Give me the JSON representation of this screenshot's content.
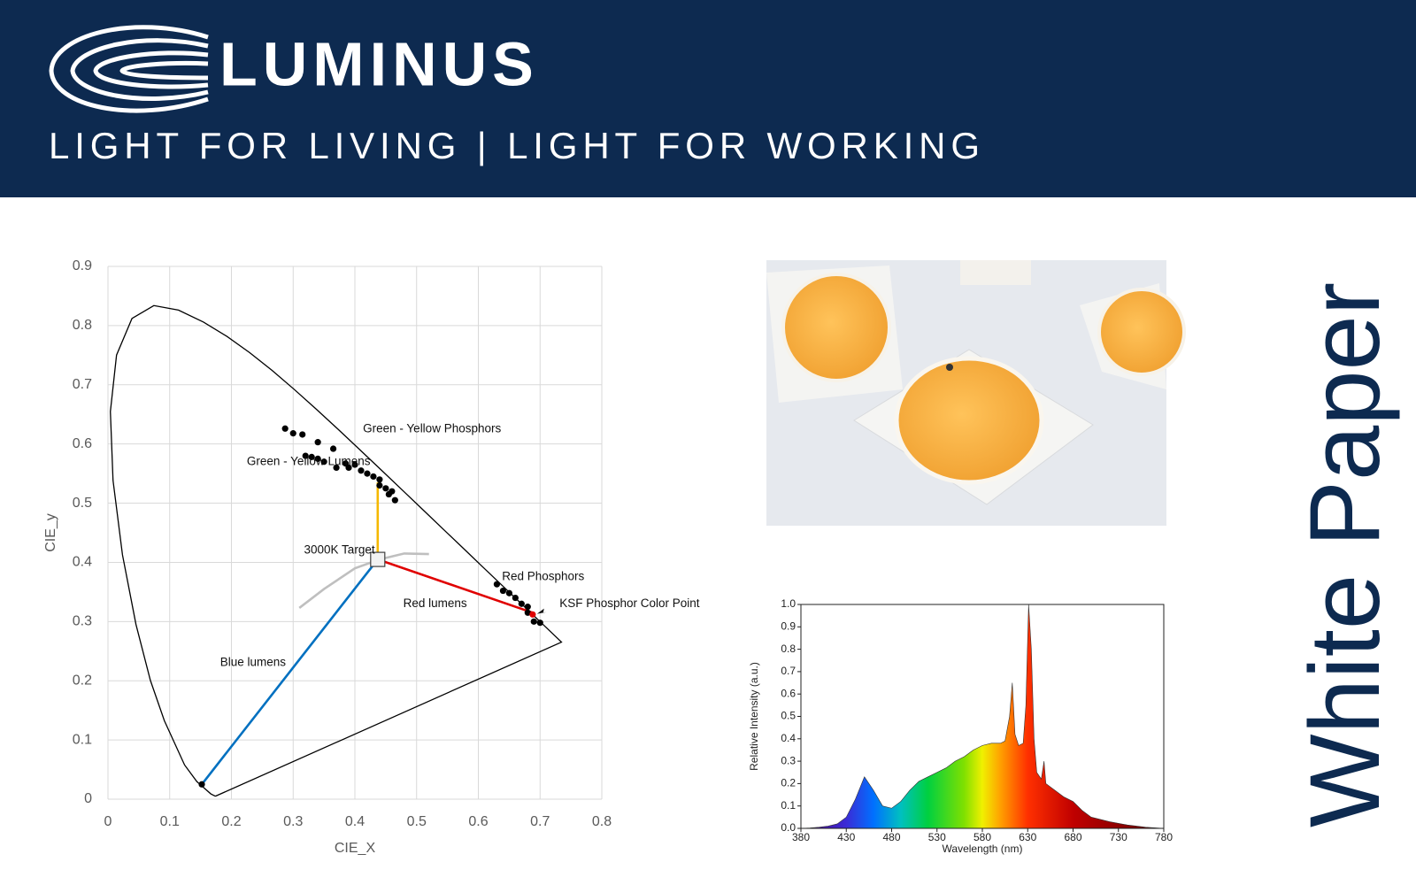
{
  "header": {
    "logo": "LUMINUS",
    "tagline": "LIGHT FOR LIVING | LIGHT FOR WORKING"
  },
  "side_title": "White Paper",
  "chart_data": [
    {
      "type": "scatter",
      "xlabel": "CIE_X",
      "ylabel": "CIE_y",
      "xlim": [
        0,
        0.8
      ],
      "ylim": [
        0,
        0.9
      ],
      "xticks": [
        0,
        0.1,
        0.2,
        0.3,
        0.4,
        0.5,
        0.6,
        0.7,
        0.8
      ],
      "yticks": [
        0,
        0.1,
        0.2,
        0.3,
        0.4,
        0.5,
        0.6,
        0.7,
        0.8,
        0.9
      ],
      "grid": true,
      "series": [
        {
          "mode": "line",
          "color": "#000000",
          "x": [
            0.1741,
            0.1666,
            0.144,
            0.1241,
            0.0913,
            0.0687,
            0.0454,
            0.0235,
            0.0082,
            0.0039,
            0.0139,
            0.0389,
            0.0743,
            0.1142,
            0.1547,
            0.1929,
            0.2296,
            0.2658,
            0.3016,
            0.3373,
            0.3731,
            0.4087,
            0.4441,
            0.4788,
            0.5125,
            0.5448,
            0.5752,
            0.6029,
            0.627,
            0.6482,
            0.6658,
            0.6801,
            0.6915,
            0.7006,
            0.7079,
            0.7347,
            0.1741
          ],
          "y": [
            0.005,
            0.0089,
            0.0297,
            0.0578,
            0.1327,
            0.2007,
            0.295,
            0.4127,
            0.5384,
            0.6548,
            0.7502,
            0.812,
            0.8338,
            0.8262,
            0.8059,
            0.7816,
            0.7543,
            0.7243,
            0.6923,
            0.6589,
            0.6245,
            0.5896,
            0.5547,
            0.5202,
            0.4866,
            0.4544,
            0.4242,
            0.3965,
            0.3725,
            0.3514,
            0.334,
            0.3197,
            0.3083,
            0.2993,
            0.292,
            0.2653,
            0.005
          ]
        },
        {
          "mode": "line",
          "color": "#bfbfbf",
          "x": [
            0.31,
            0.35,
            0.4,
            0.44,
            0.48,
            0.52
          ],
          "y": [
            0.323,
            0.355,
            0.39,
            0.405,
            0.415,
            0.414
          ]
        },
        {
          "mode": "line",
          "color": "#0070c0",
          "x": [
            0.152,
            0.437
          ],
          "y": [
            0.025,
            0.405
          ]
        },
        {
          "mode": "line",
          "color": "#f5b800",
          "x": [
            0.437,
            0.437
          ],
          "y": [
            0.405,
            0.535
          ]
        },
        {
          "mode": "line",
          "color": "#e00000",
          "x": [
            0.437,
            0.688
          ],
          "y": [
            0.405,
            0.315
          ]
        },
        {
          "mode": "markers",
          "color": "#000000",
          "x": [
            0.287,
            0.3,
            0.315,
            0.34,
            0.365,
            0.32,
            0.33,
            0.34,
            0.35,
            0.37,
            0.385,
            0.39,
            0.4,
            0.41,
            0.42,
            0.43,
            0.44,
            0.44,
            0.45,
            0.46,
            0.455,
            0.465,
            0.63,
            0.64,
            0.65,
            0.66,
            0.67,
            0.68,
            0.68,
            0.69,
            0.7,
            0.152
          ],
          "y": [
            0.626,
            0.618,
            0.616,
            0.603,
            0.592,
            0.58,
            0.578,
            0.575,
            0.57,
            0.56,
            0.567,
            0.56,
            0.565,
            0.555,
            0.55,
            0.545,
            0.54,
            0.53,
            0.525,
            0.52,
            0.515,
            0.505,
            0.363,
            0.352,
            0.348,
            0.34,
            0.33,
            0.325,
            0.315,
            0.3,
            0.298,
            0.025
          ]
        },
        {
          "mode": "markers",
          "color": "#e00000",
          "x": [
            0.688
          ],
          "y": [
            0.312
          ]
        },
        {
          "mode": "square",
          "color": "#f2f2f2",
          "x": [
            0.437
          ],
          "y": [
            0.405
          ]
        }
      ],
      "annotations": [
        {
          "text": "Green - Yellow Phosphors",
          "x": 0.525,
          "y": 0.625
        },
        {
          "text": "Green - Yellow Lumens",
          "x": 0.325,
          "y": 0.57
        },
        {
          "text": "3000K Target",
          "x": 0.375,
          "y": 0.42
        },
        {
          "text": "Red Phosphors",
          "x": 0.705,
          "y": 0.375
        },
        {
          "text": "Red lumens",
          "x": 0.53,
          "y": 0.33
        },
        {
          "text": "KSF Phosphor Color Point",
          "x": 0.845,
          "y": 0.33
        },
        {
          "text": "Blue lumens",
          "x": 0.235,
          "y": 0.23
        }
      ]
    },
    {
      "type": "area",
      "xlabel": "Wavelength (nm)",
      "ylabel": "Relative Intensity (a.u.)",
      "xlim": [
        380,
        780
      ],
      "ylim": [
        0,
        1.0
      ],
      "xticks": [
        380,
        430,
        480,
        530,
        580,
        630,
        680,
        730,
        780
      ],
      "yticks": [
        {
          "value": 0,
          "label": "0.0"
        },
        0.1,
        0.2,
        0.3,
        0.4,
        0.5,
        0.6,
        0.7,
        0.8,
        0.9,
        {
          "value": 1.0,
          "label": "1.0"
        }
      ],
      "grid": false,
      "x": [
        380,
        390,
        400,
        410,
        420,
        430,
        440,
        450,
        460,
        470,
        480,
        490,
        500,
        510,
        520,
        530,
        540,
        550,
        560,
        570,
        580,
        590,
        600,
        605,
        610,
        613,
        616,
        620,
        625,
        628,
        631,
        634,
        637,
        640,
        645,
        648,
        650,
        660,
        670,
        680,
        690,
        700,
        720,
        740,
        760,
        780
      ],
      "values": [
        0,
        0.002,
        0.005,
        0.01,
        0.02,
        0.05,
        0.13,
        0.23,
        0.17,
        0.1,
        0.09,
        0.12,
        0.17,
        0.21,
        0.23,
        0.25,
        0.27,
        0.3,
        0.32,
        0.35,
        0.37,
        0.38,
        0.38,
        0.39,
        0.5,
        0.65,
        0.42,
        0.37,
        0.38,
        0.55,
        1.0,
        0.8,
        0.4,
        0.25,
        0.22,
        0.3,
        0.2,
        0.17,
        0.14,
        0.12,
        0.08,
        0.05,
        0.03,
        0.015,
        0.005,
        0
      ]
    }
  ]
}
